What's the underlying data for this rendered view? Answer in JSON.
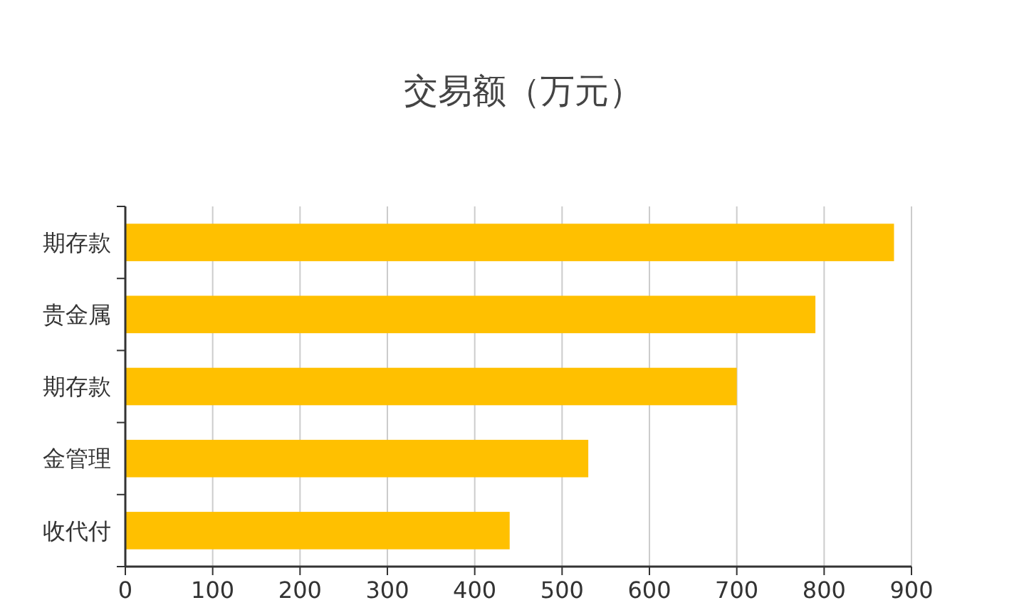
{
  "chart_data": {
    "type": "bar",
    "title": "交易额（万元）",
    "orientation": "horizontal",
    "categories": [
      "期存款",
      "贵金属",
      "期存款",
      "金管理",
      "收代付"
    ],
    "values": [
      880,
      790,
      700,
      530,
      440
    ],
    "color": "#ffc000",
    "xlim": [
      0,
      900
    ],
    "xticks": [
      0,
      100,
      200,
      300,
      400,
      500,
      600,
      700,
      800,
      900
    ],
    "grid": "x"
  }
}
